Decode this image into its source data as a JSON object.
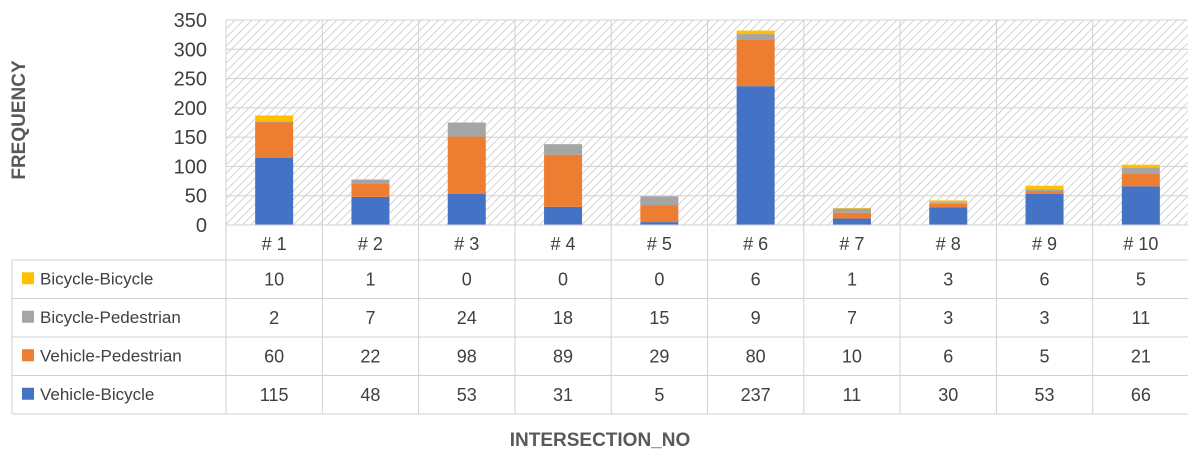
{
  "chart_data": {
    "type": "bar",
    "stacked": true,
    "xlabel": "INTERSECTION_NO",
    "ylabel": "FREQUENCY",
    "ylim": [
      0,
      350
    ],
    "yticks": [
      0,
      50,
      100,
      150,
      200,
      250,
      300,
      350
    ],
    "grid": true,
    "data_table": true,
    "categories": [
      "# 1",
      "# 2",
      "# 3",
      "# 4",
      "# 5",
      "# 6",
      "# 7",
      "# 8",
      "# 9",
      "# 10"
    ],
    "series": [
      {
        "name": "Vehicle-Bicycle",
        "color": "#4472C4",
        "values": [
          115,
          48,
          53,
          31,
          5,
          237,
          11,
          30,
          53,
          66
        ]
      },
      {
        "name": "Vehicle-Pedestrian",
        "color": "#ED7D31",
        "values": [
          60,
          22,
          98,
          89,
          29,
          80,
          10,
          6,
          5,
          21
        ]
      },
      {
        "name": "Bicycle-Pedestrian",
        "color": "#A5A5A5",
        "values": [
          2,
          7,
          24,
          18,
          15,
          9,
          7,
          3,
          3,
          11
        ]
      },
      {
        "name": "Bicycle-Bicycle",
        "color": "#FFC000",
        "values": [
          10,
          1,
          0,
          0,
          0,
          6,
          1,
          3,
          6,
          5
        ]
      }
    ],
    "table_row_order": [
      "Bicycle-Bicycle",
      "Bicycle-Pedestrian",
      "Vehicle-Pedestrian",
      "Vehicle-Bicycle"
    ]
  }
}
